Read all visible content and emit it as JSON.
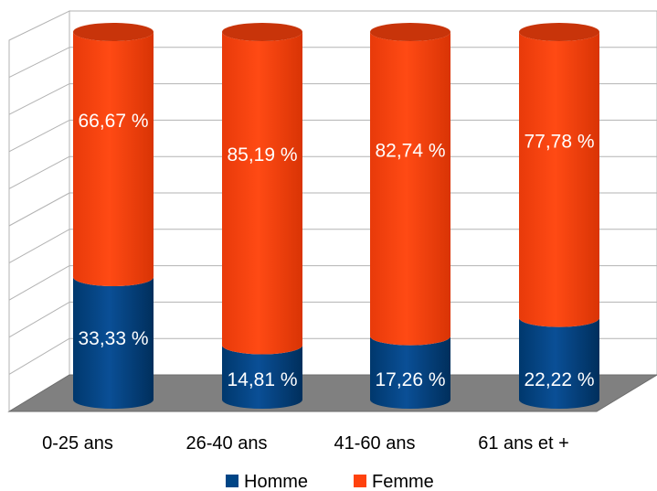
{
  "chart_data": {
    "type": "bar",
    "stacked": true,
    "normalized": true,
    "style": "3d-cylinder",
    "categories": [
      "0-25 ans",
      "26-40 ans",
      "41-60 ans",
      "61 ans et +"
    ],
    "series": [
      {
        "name": "Homme",
        "color": "#004586",
        "values": [
          33.33,
          14.81,
          17.26,
          22.22
        ],
        "labels": [
          "33,33 %",
          "14,81 %",
          "17,26 %",
          "22,22 %"
        ]
      },
      {
        "name": "Femme",
        "color": "#ff420e",
        "values": [
          66.67,
          85.19,
          82.74,
          77.78
        ],
        "labels": [
          "66,67 %",
          "85,19 %",
          "82,74 %",
          "77,78 %"
        ]
      }
    ],
    "ylim": [
      0,
      100
    ],
    "grid": true,
    "legend_position": "bottom"
  }
}
